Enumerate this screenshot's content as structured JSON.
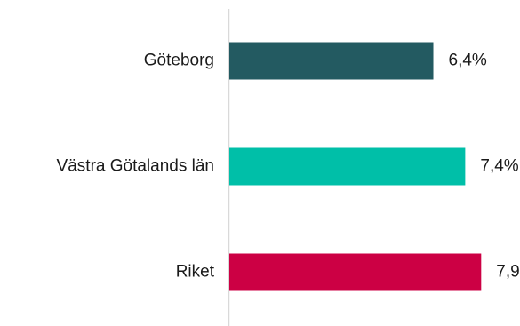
{
  "chart_data": {
    "type": "bar",
    "orientation": "horizontal",
    "categories": [
      "Göteborg",
      "Västra Götalands län",
      "Riket"
    ],
    "values": [
      6.4,
      7.4,
      7.9
    ],
    "value_labels": [
      "6,4%",
      "7,4%",
      "7,9%"
    ],
    "colors": [
      "#235a61",
      "#00bfa8",
      "#cc0044"
    ],
    "title": "",
    "xlabel": "",
    "ylabel": "",
    "xlim": [
      0,
      8.7
    ],
    "grid": false,
    "legend": "none"
  }
}
